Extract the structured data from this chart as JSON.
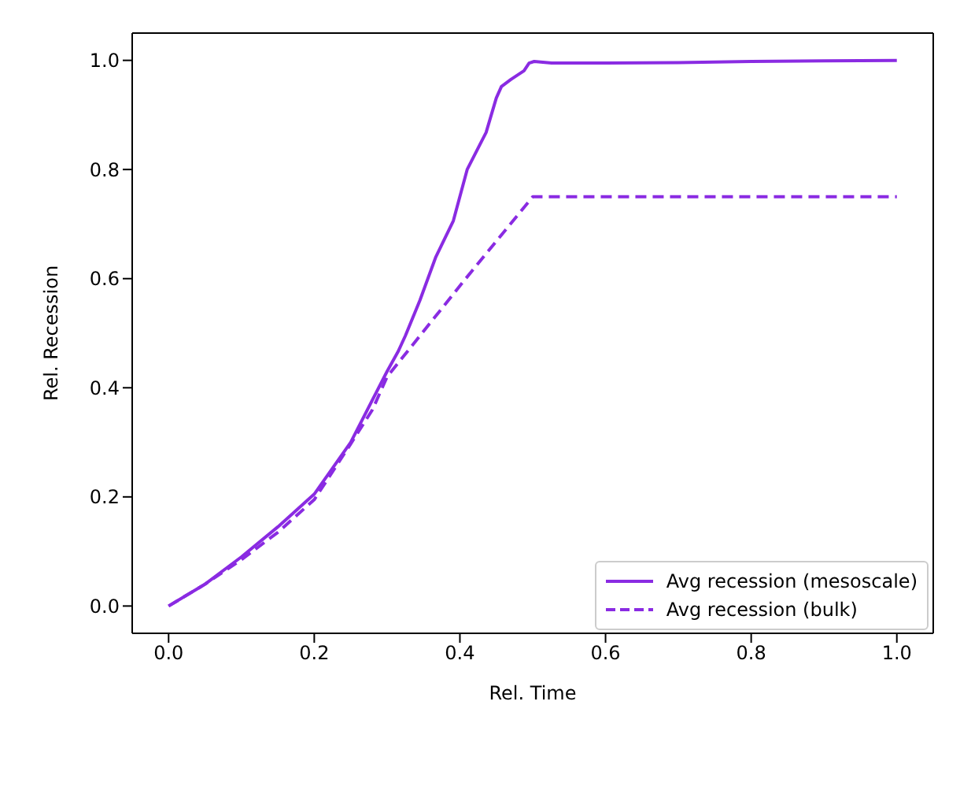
{
  "chart_data": {
    "type": "line",
    "xlabel": "Rel. Time",
    "ylabel": "Rel. Recession",
    "xlim": [
      -0.05,
      1.05
    ],
    "ylim": [
      -0.05,
      1.05
    ],
    "xticks": [
      {
        "value": 0,
        "label": "0.0"
      },
      0.2,
      0.4,
      0.6,
      0.8,
      {
        "value": 1,
        "label": "1.0"
      }
    ],
    "yticks": [
      {
        "value": 0,
        "label": "0.0"
      },
      0.2,
      0.4,
      0.6,
      0.8,
      {
        "value": 1,
        "label": "1.0"
      }
    ],
    "legend": "bottom right",
    "marker": "none",
    "series": [
      {
        "name": "Avg recession (mesoscale)",
        "color": "#8a2be2",
        "line_style": "solid",
        "x": [
          0,
          0.05,
          0.1,
          0.15,
          0.2,
          0.25,
          0.3,
          0.315,
          0.325,
          0.345,
          0.367,
          0.391,
          0.41,
          0.436,
          0.45,
          0.457,
          0.47,
          0.488,
          0.495,
          0.502,
          0.526,
          0.6,
          0.7,
          0.8,
          0.9,
          1.0
        ],
        "values": [
          0,
          0.04,
          0.09,
          0.145,
          0.205,
          0.3,
          0.43,
          0.466,
          0.495,
          0.56,
          0.64,
          0.706,
          0.8,
          0.868,
          0.931,
          0.952,
          0.965,
          0.981,
          0.995,
          0.998,
          0.995,
          0.995,
          0.996,
          0.998,
          0.999,
          1.0
        ]
      },
      {
        "name": "Avg recession (bulk)",
        "color": "#8a2be2",
        "line_style": "dashed",
        "x": [
          0,
          0.05,
          0.1,
          0.15,
          0.2,
          0.25,
          0.28,
          0.3,
          0.408,
          0.5,
          0.6,
          0.7,
          0.8,
          0.9,
          1.0
        ],
        "values": [
          0,
          0.04,
          0.085,
          0.135,
          0.195,
          0.297,
          0.36,
          0.42,
          0.6,
          0.75,
          0.75,
          0.75,
          0.75,
          0.75,
          0.75
        ]
      }
    ]
  }
}
